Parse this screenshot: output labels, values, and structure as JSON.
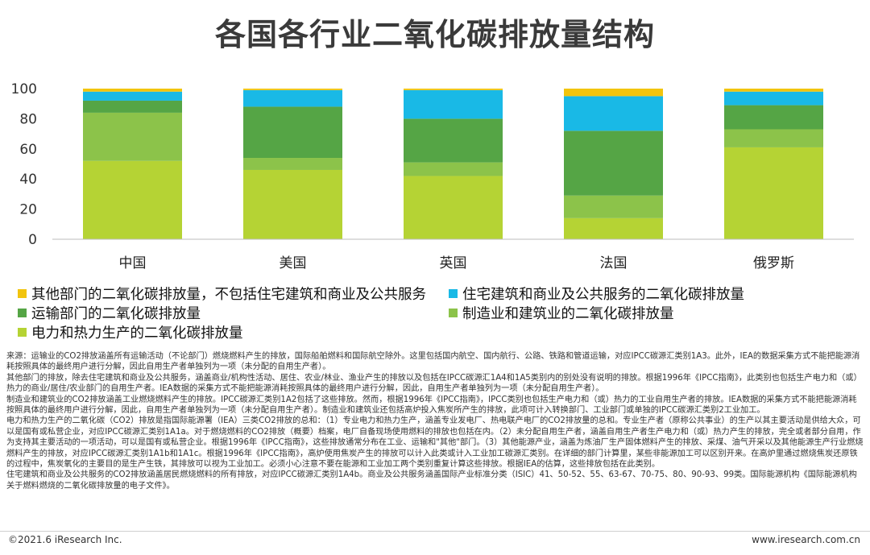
{
  "title": "各国各行业二氧化碳排放量结构",
  "chart_data": {
    "type": "bar",
    "stacked": true,
    "categories": [
      "中国",
      "美国",
      "英国",
      "法国",
      "俄罗斯"
    ],
    "series": [
      {
        "name": "电力和热力生产的二氧化碳排放量",
        "color": "#b5d334",
        "values": [
          52,
          46,
          42,
          14,
          61
        ]
      },
      {
        "name": "制造业和建筑业的二氧化碳排放量",
        "color": "#8cc34a",
        "values": [
          32,
          8,
          9,
          15,
          12
        ]
      },
      {
        "name": "运输部门的二氧化碳排放量",
        "color": "#55a545",
        "values": [
          8,
          34,
          29,
          43,
          16
        ]
      },
      {
        "name": "住宅建筑和商业及公共服务的二氧化碳排放量",
        "color": "#19b9e6",
        "values": [
          6,
          11,
          19,
          23,
          9
        ]
      },
      {
        "name": "其他部门的二氧化碳排放量，不包括住宅建筑和商业及公共服务",
        "color": "#f2c40e",
        "values": [
          2,
          1,
          1,
          5,
          2
        ]
      }
    ],
    "yticks": [
      "0",
      "20",
      "40",
      "60",
      "80",
      "100"
    ],
    "ylim": [
      0,
      100
    ],
    "grid": false,
    "legend_position": "bottom"
  },
  "notes": [
    "来源：运输业的CO2排放涵盖所有运输活动（不论部门）燃烧燃料产生的排放，国际船舶燃料和国际航空除外。这里包括国内航空、国内航行、公路、铁路和管道运输，对应IPCC碳源汇类别1A3。此外，IEA的数据采集方式不能把能源消耗按照具体的最终用户进行分解，因此自用生产者单独列为一项（未分配的自用生产者）。",
    "其他部门的排放，除去住宅建筑和商业及公共服务，涵盖商业/机构性活动、居住、农业/林业、渔业产生的排放以及包括在IPCC碳源汇1A4和1A5类别内的别处没有说明的排放。根据1996年《IPCC指南》，此类别也包括生产电力和（或）热力的商业/居住/农业部门的自用生产者。IEA数据的采集方式不能把能源消耗按照具体的最终用户进行分解，因此，自用生产者单独列为一项（未分配自用生产者）。",
    "制造业和建筑业的CO2排放涵盖工业燃烧燃料产生的排放。IPCC碳源汇类别1A2包括了这些排放。然而，根据1996年《IPCC指南》，IPCC类别也包括生产电力和（或）热力的工业自用生产者的排放。IEA数据的采集方式不能把能源消耗按照具体的最终用户进行分解，因此，自用生产者单独列为一项（未分配自用生产者）。制造业和建筑业还包括高炉投入焦炭所产生的排放，此项可计入转换部门、工业部门或单独的IPCC碳源汇类别2工业加工。",
    "电力和热力生产的二氧化碳（CO2）排放是指国际能源署（IEA）三类CO2排放的总和：（1）专业电力和热力生产，涵盖专业发电厂、热电联产电厂的CO2排放量的总和。专业生产者（原称公共事业）的生产以其主要活动是供给大众，可以是国有或私营企业，对应IPCC碳源汇类别1A1a。对于燃烧燃料的CO2排放（概要）档案，电厂自备现场使用燃料的排放也包括在内。（2）未分配自用生产者，涵盖自用生产者生产电力和（或）热力产生的排放，完全或者部分自用，作为支持其主要活动的一项活动，可以是国有或私营企业。根据1996年《IPCC指南》，这些排放通常分布在工业、运输和\"其他\"部门。（3）其他能源产业，涵盖为炼油厂生产固体燃料产生的排放、采煤、油气开采以及其他能源生产行业燃烧燃料产生的排放，对应IPCC碳源汇类别1A1b和1A1c。根据1996年《IPCC指南》，高炉使用焦炭产生的排放可以计入此类或计入工业加工碳源汇类别。在详细的部门计算里，某些非能源加工可以区别开来。在高炉里通过燃烧焦炭还原铁的过程中，焦炭氧化的主要目的是生产生铁，其排放可以视为工业加工。必须小心注意不要在能源和工业加工两个类别重复计算这些排放。根据IEA的估算，这些排放包括在此类别。",
    "住宅建筑和商业及公共服务的CO2排放涵盖居民燃烧燃料的所有排放，对应IPCC碳源汇类别1A4b。商业及公共服务涵盖国际产业标准分类（ISIC）41、50-52、55、63-67、70-75、80、90-93、99类。国际能源机构《国际能源机构关于燃料燃烧的二氧化碳排放量的电子文件》。"
  ],
  "footer": {
    "left": "©2021.6 iResearch Inc.",
    "right": "www.iresearch.com.cn"
  }
}
